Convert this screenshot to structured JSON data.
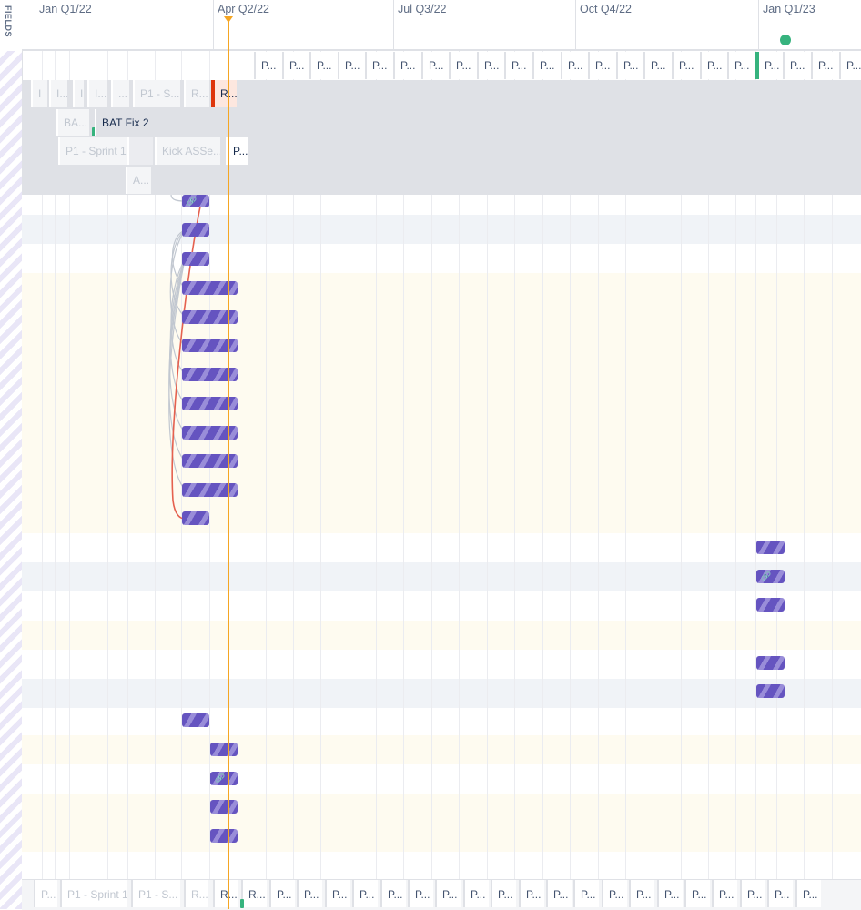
{
  "sidebar": {
    "fields_label": "FIELDS"
  },
  "timeline": {
    "quarters": [
      "Jan Q1/22",
      "Apr Q2/22",
      "Jul Q3/22",
      "Oct Q4/22",
      "Jan Q1/23"
    ]
  },
  "sprints_top": [
    "P...",
    "P...",
    "P...",
    "P...",
    "P...",
    "P...",
    "P...",
    "P...",
    "P...",
    "P...",
    "P...",
    "P...",
    "P...",
    "P...",
    "P...",
    "P...",
    "P...",
    "P...",
    "P...",
    "P...",
    "P...",
    "P..."
  ],
  "group_rows": {
    "row1": [
      "I",
      "I...",
      "I",
      "I...",
      "...",
      "P1 - S...",
      "R...",
      "R..."
    ],
    "row2": [
      "BA...",
      "BAT Fix 2"
    ],
    "row3": [
      "P1 - Sprint 1",
      "Kick ASSe...",
      "P..."
    ],
    "row4": [
      "A..."
    ]
  },
  "sprints_bottom": [
    "P...",
    "P1 - Sprint 1",
    "P1 - S...",
    "R...",
    "R...",
    "R...",
    "P...",
    "P...",
    "P...",
    "P...",
    "P...",
    "P...",
    "P...",
    "P...",
    "P...",
    "P...",
    "P...",
    "P...",
    "P...",
    "P...",
    "P...",
    "P...",
    "P...",
    "P...",
    "P...",
    "P..."
  ],
  "colors": {
    "accent": "#6554c0",
    "today": "#f5a623",
    "release": "#36b37e",
    "dependency_critical": "#de350b"
  },
  "icons": {
    "link": "link-icon"
  }
}
